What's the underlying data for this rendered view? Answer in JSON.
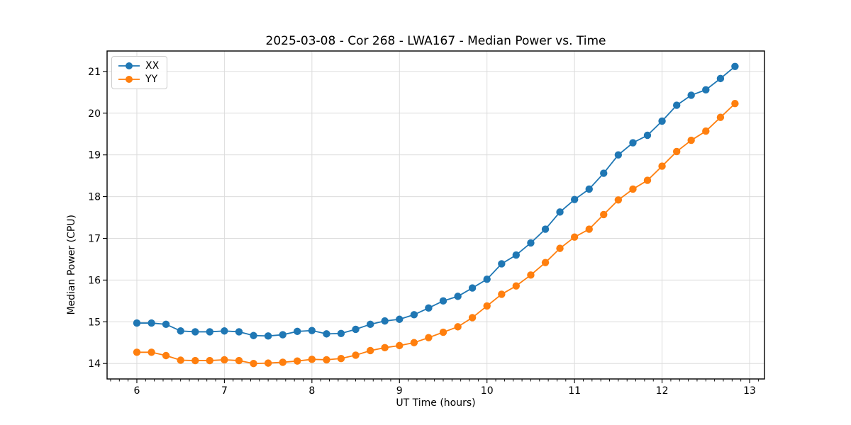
{
  "chart_data": {
    "type": "line",
    "title": "2025-03-08 - Cor 268 - LWA167 - Median Power vs. Time",
    "xlabel": "UT Time (hours)",
    "ylabel": "Median Power (CPU)",
    "legend_position": "upper left",
    "grid": true,
    "background_color": "#ffffff",
    "grid_color": "#dcdcdc",
    "spine_color": "#000000",
    "xlim": [
      5.66,
      13.17
    ],
    "ylim": [
      13.63,
      21.49
    ],
    "xticks": [
      6,
      7,
      8,
      9,
      10,
      11,
      12,
      13
    ],
    "yticks": [
      14,
      15,
      16,
      17,
      18,
      19,
      20,
      21
    ],
    "x_minor_tick_step": 0.1,
    "x": [
      6.0,
      6.167,
      6.333,
      6.5,
      6.667,
      6.833,
      7.0,
      7.167,
      7.333,
      7.5,
      7.667,
      7.833,
      8.0,
      8.167,
      8.333,
      8.5,
      8.667,
      8.833,
      9.0,
      9.167,
      9.333,
      9.5,
      9.667,
      9.833,
      10.0,
      10.167,
      10.333,
      10.5,
      10.667,
      10.833,
      11.0,
      11.167,
      11.333,
      11.5,
      11.667,
      11.833,
      12.0,
      12.167,
      12.333,
      12.5,
      12.667,
      12.833
    ],
    "series": [
      {
        "name": "XX",
        "color": "#1f77b4",
        "values": [
          14.97,
          14.97,
          14.94,
          14.78,
          14.76,
          14.76,
          14.78,
          14.76,
          14.67,
          14.66,
          14.69,
          14.77,
          14.79,
          14.71,
          14.72,
          14.82,
          14.94,
          15.02,
          15.06,
          15.17,
          15.33,
          15.5,
          15.61,
          15.81,
          16.02,
          16.39,
          16.6,
          16.89,
          17.22,
          17.63,
          17.93,
          18.18,
          18.56,
          19.0,
          19.29,
          19.47,
          19.81,
          20.19,
          20.43,
          20.56,
          20.83,
          21.12
        ]
      },
      {
        "name": "YY",
        "color": "#ff7f0e",
        "values": [
          14.27,
          14.27,
          14.19,
          14.08,
          14.07,
          14.07,
          14.09,
          14.07,
          14.0,
          14.01,
          14.03,
          14.06,
          14.1,
          14.09,
          14.12,
          14.2,
          14.31,
          14.38,
          14.43,
          14.5,
          14.62,
          14.75,
          14.88,
          15.1,
          15.38,
          15.66,
          15.86,
          16.12,
          16.42,
          16.76,
          17.03,
          17.22,
          17.57,
          17.92,
          18.18,
          18.39,
          18.73,
          19.08,
          19.35,
          19.57,
          19.9,
          20.23
        ]
      }
    ]
  }
}
